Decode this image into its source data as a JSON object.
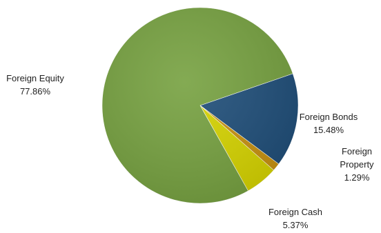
{
  "chart_data": {
    "type": "pie",
    "title": "",
    "start_angle_deg": -19,
    "direction": "clockwise",
    "slices": [
      {
        "label": "Foreign Bonds",
        "value": 15.48,
        "value_text": "15.48%",
        "color": "#1F4E79"
      },
      {
        "label": "Foreign Property",
        "value": 1.29,
        "value_text": "1.29%",
        "color": "#C8920F"
      },
      {
        "label": "Foreign Cash",
        "value": 5.37,
        "value_text": "5.37%",
        "color": "#D6D400"
      },
      {
        "label": "Foreign Equity",
        "value": 77.86,
        "value_text": "77.86%",
        "color": "#76A140"
      }
    ],
    "legend": "none",
    "data_labels": "outside"
  }
}
